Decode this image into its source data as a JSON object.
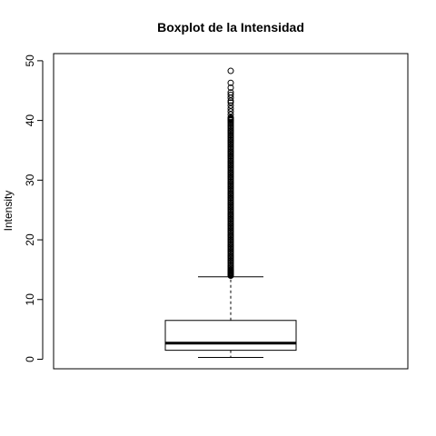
{
  "chart_data": {
    "type": "boxplot",
    "title": "Boxplot de la Intensidad",
    "xlabel": "",
    "ylabel": "Intensity",
    "ylim": [
      -1.6,
      51.2
    ],
    "yticks": [
      0,
      10,
      20,
      30,
      40,
      50
    ],
    "grid": false,
    "legend": "none",
    "box": {
      "whisker_low": 0.3,
      "q1": 1.5,
      "median": 2.7,
      "q3": 6.5,
      "whisker_high": 13.8
    },
    "outliers": [
      14.0,
      14.5,
      15.0,
      16.0,
      17.0,
      18.0,
      19.0,
      20.0,
      21.0,
      22.0,
      23.0,
      24.0,
      25.0,
      26.0,
      27.0,
      28.0,
      29.0,
      30.0,
      31.0,
      32.0,
      33.0,
      34.0,
      35.0,
      36.0,
      37.0,
      38.0,
      39.0,
      40.0,
      40.5,
      41.0,
      41.5,
      42.0,
      42.5,
      43.0,
      43.3,
      43.8,
      44.3,
      44.7,
      45.5,
      46.3,
      48.3
    ]
  }
}
